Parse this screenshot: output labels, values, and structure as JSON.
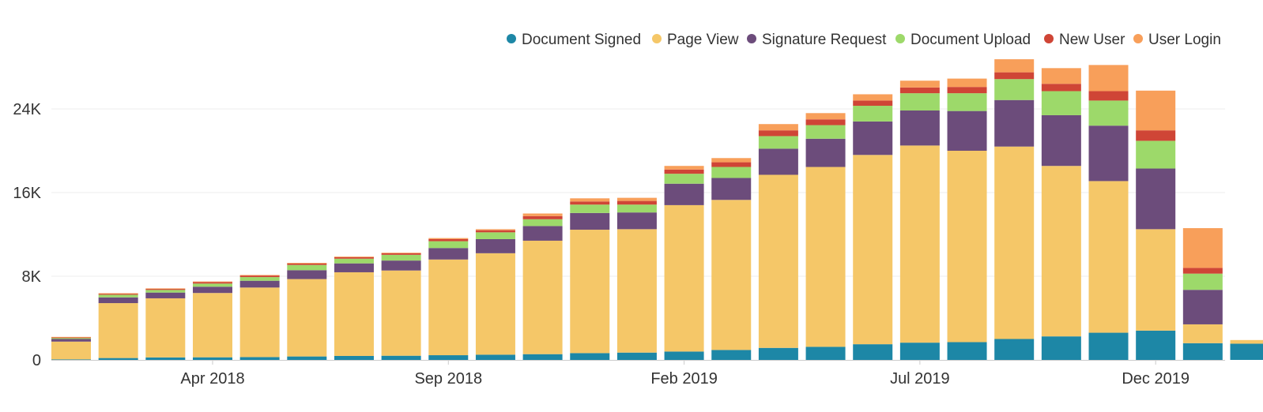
{
  "chart_data": {
    "type": "bar",
    "stacked": true,
    "x_tick_labels": [
      "Apr 2018",
      "Sep 2018",
      "Feb 2019",
      "Jul 2019",
      "Dec 2019"
    ],
    "y_tick_labels": [
      "0",
      "8K",
      "16K",
      "24K"
    ],
    "ylim": [
      0,
      28000
    ],
    "grid": true,
    "legend_position": "top-right",
    "categories": [
      "Jan 2018",
      "Feb 2018",
      "Mar 2018",
      "Apr 2018",
      "May 2018",
      "Jun 2018",
      "Jul 2018",
      "Aug 2018",
      "Sep 2018",
      "Oct 2018",
      "Nov 2018",
      "Dec 2018",
      "Jan 2019",
      "Feb 2019",
      "Mar 2019",
      "Apr 2019",
      "May 2019",
      "Jun 2019",
      "Jul 2019",
      "Aug 2019",
      "Sep 2019",
      "Oct 2019",
      "Nov 2019",
      "Dec 2019",
      "Jan 2020",
      "Feb 2020"
    ],
    "series": [
      {
        "name": "Document Signed",
        "color": "#1d87a6",
        "values": [
          50,
          180,
          240,
          250,
          270,
          330,
          380,
          400,
          450,
          500,
          550,
          650,
          700,
          800,
          950,
          1150,
          1250,
          1500,
          1650,
          1700,
          2000,
          2250,
          2600,
          2800,
          1600,
          1550
        ]
      },
      {
        "name": "Page View",
        "color": "#f5c768",
        "values": [
          1700,
          5250,
          5650,
          6150,
          6650,
          7400,
          8000,
          8150,
          9150,
          9700,
          10850,
          11800,
          11800,
          14000,
          14350,
          16550,
          17200,
          18100,
          18850,
          18300,
          18400,
          16300,
          14500,
          9700,
          1800,
          350
        ]
      },
      {
        "name": "Signature Request",
        "color": "#6c4c7b",
        "values": [
          250,
          550,
          550,
          600,
          650,
          850,
          850,
          950,
          1100,
          1350,
          1400,
          1600,
          1600,
          2050,
          2100,
          2500,
          2700,
          3200,
          3350,
          3800,
          4450,
          4850,
          5300,
          5800,
          3300,
          0
        ]
      },
      {
        "name": "Document Upload",
        "color": "#9dd96a",
        "values": [
          100,
          250,
          250,
          300,
          350,
          500,
          450,
          550,
          650,
          650,
          650,
          800,
          750,
          950,
          1050,
          1200,
          1300,
          1500,
          1650,
          1700,
          2000,
          2300,
          2400,
          2650,
          1550,
          0
        ]
      },
      {
        "name": "New User",
        "color": "#cf4536",
        "values": [
          50,
          100,
          100,
          150,
          150,
          150,
          150,
          150,
          200,
          200,
          300,
          300,
          350,
          400,
          450,
          550,
          550,
          500,
          550,
          600,
          650,
          700,
          900,
          1000,
          550,
          0
        ]
      },
      {
        "name": "User Login",
        "color": "#f89f5a",
        "values": [
          50,
          50,
          50,
          50,
          50,
          50,
          50,
          50,
          100,
          100,
          250,
          300,
          300,
          350,
          400,
          600,
          600,
          600,
          650,
          800,
          1250,
          1500,
          2500,
          3800,
          3800,
          0
        ]
      }
    ]
  }
}
